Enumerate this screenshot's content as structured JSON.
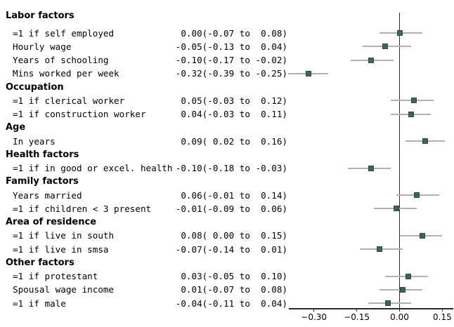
{
  "chart_data": {
    "type": "scatter",
    "variant": "forest-plot",
    "title": "",
    "xlabel": "",
    "ylabel": "",
    "grid": false,
    "legend": false,
    "x_axis": {
      "ticks": [
        -0.3,
        -0.15,
        0.0,
        0.15
      ],
      "tick_labels": [
        "−0.30",
        "−0.15",
        "0.00",
        "0.15"
      ],
      "range": [
        -0.39,
        0.19
      ],
      "reference_line_x": 0
    },
    "colors": {
      "marker": "#40625c",
      "marker_border": "#304a46",
      "ci_line": "#b0b0b0",
      "axis": "#2b2b2b",
      "text": "#000000"
    },
    "groups": [
      {
        "header": "Labor factors",
        "items": [
          {
            "label": "=1 if self employed",
            "estimate_text": "0.00(-0.07 to  0.08)",
            "est": 0.0,
            "lo": -0.07,
            "hi": 0.08
          },
          {
            "label": "Hourly wage",
            "estimate_text": "-0.05(-0.13 to  0.04)",
            "est": -0.05,
            "lo": -0.13,
            "hi": 0.04
          },
          {
            "label": "Years of schooling",
            "estimate_text": "-0.10(-0.17 to -0.02)",
            "est": -0.1,
            "lo": -0.17,
            "hi": -0.02
          },
          {
            "label": "Mins worked per week",
            "estimate_text": "-0.32(-0.39 to -0.25)",
            "est": -0.32,
            "lo": -0.39,
            "hi": -0.25
          }
        ]
      },
      {
        "header": "Occupation",
        "items": [
          {
            "label": "=1 if clerical worker",
            "estimate_text": "0.05(-0.03 to  0.12)",
            "est": 0.05,
            "lo": -0.03,
            "hi": 0.12
          },
          {
            "label": "=1 if construction worker",
            "estimate_text": "0.04(-0.03 to  0.11)",
            "est": 0.04,
            "lo": -0.03,
            "hi": 0.11
          }
        ]
      },
      {
        "header": "Age",
        "items": [
          {
            "label": "In years",
            "estimate_text": "0.09( 0.02 to  0.16)",
            "est": 0.09,
            "lo": 0.02,
            "hi": 0.16
          }
        ]
      },
      {
        "header": "Health factors",
        "items": [
          {
            "label": "=1 if in good or excel. health",
            "estimate_text": "-0.10(-0.18 to -0.03)",
            "est": -0.1,
            "lo": -0.18,
            "hi": -0.03
          }
        ]
      },
      {
        "header": "Family factors",
        "items": [
          {
            "label": "Years married",
            "estimate_text": "0.06(-0.01 to  0.14)",
            "est": 0.06,
            "lo": -0.01,
            "hi": 0.14
          },
          {
            "label": "=1 if children < 3 present",
            "estimate_text": "-0.01(-0.09 to  0.06)",
            "est": -0.01,
            "lo": -0.09,
            "hi": 0.06
          }
        ]
      },
      {
        "header": "Area of residence",
        "items": [
          {
            "label": "=1 if live in south",
            "estimate_text": "0.08( 0.00 to  0.15)",
            "est": 0.08,
            "lo": 0.0,
            "hi": 0.15
          },
          {
            "label": "=1 if live in smsa",
            "estimate_text": "-0.07(-0.14 to  0.01)",
            "est": -0.07,
            "lo": -0.14,
            "hi": 0.01
          }
        ]
      },
      {
        "header": "Other factors",
        "items": [
          {
            "label": "=1 if protestant",
            "estimate_text": "0.03(-0.05 to  0.10)",
            "est": 0.03,
            "lo": -0.05,
            "hi": 0.1
          },
          {
            "label": "Spousal wage income",
            "estimate_text": "0.01(-0.07 to  0.08)",
            "est": 0.01,
            "lo": -0.07,
            "hi": 0.08
          },
          {
            "label": "=1 if male",
            "estimate_text": "-0.04(-0.11 to  0.04)",
            "est": -0.04,
            "lo": -0.11,
            "hi": 0.04
          }
        ]
      }
    ]
  }
}
